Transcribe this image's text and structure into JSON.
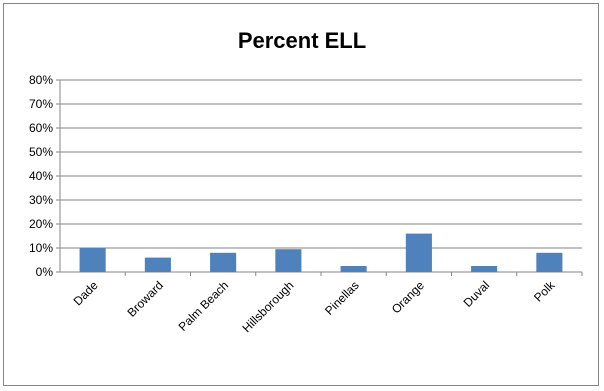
{
  "chart_data": {
    "type": "bar",
    "title": "Percent ELL",
    "xlabel": "",
    "ylabel": "",
    "categories": [
      "Dade",
      "Broward",
      "Palm Beach",
      "Hillsborough",
      "Pinellas",
      "Orange",
      "Duval",
      "Polk"
    ],
    "values": [
      0.1,
      0.06,
      0.08,
      0.095,
      0.025,
      0.16,
      0.025,
      0.08
    ],
    "ylim": [
      0,
      0.8
    ],
    "yticks": [
      "0%",
      "10%",
      "20%",
      "30%",
      "40%",
      "50%",
      "60%",
      "70%",
      "80%"
    ],
    "grid": true,
    "legend": "none",
    "colors": {
      "bar": "#4F81BD",
      "grid": "#868686",
      "axis": "#868686"
    }
  }
}
